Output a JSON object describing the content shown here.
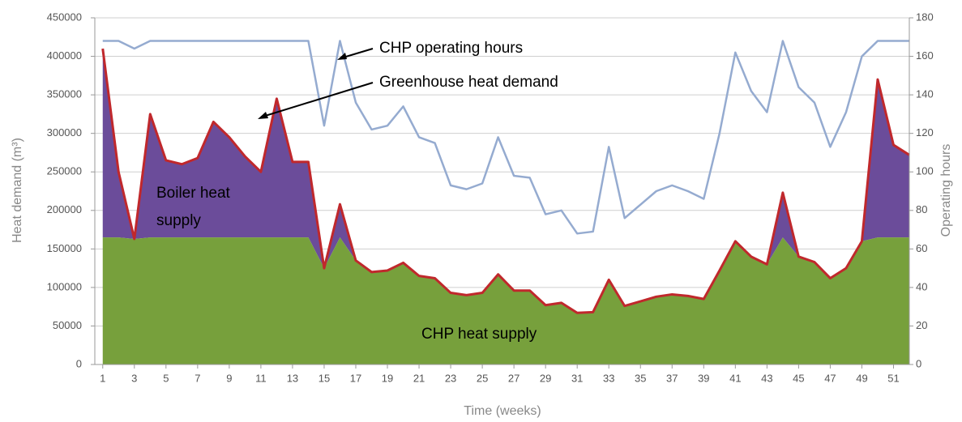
{
  "chart_data": {
    "type": "area",
    "x_label": "Time (weeks)",
    "y_label": "Heat demand (m³)",
    "y2_label": "Operating hours",
    "x": [
      1,
      2,
      3,
      4,
      5,
      6,
      7,
      8,
      9,
      10,
      11,
      12,
      13,
      14,
      15,
      16,
      17,
      18,
      19,
      20,
      21,
      22,
      23,
      24,
      25,
      26,
      27,
      28,
      29,
      30,
      31,
      32,
      33,
      34,
      35,
      36,
      37,
      38,
      39,
      40,
      41,
      42,
      43,
      44,
      45,
      46,
      47,
      48,
      49,
      50,
      51,
      52
    ],
    "xlim": [
      0.5,
      52
    ],
    "xticks": [
      1,
      3,
      5,
      7,
      9,
      11,
      13,
      15,
      17,
      19,
      21,
      23,
      25,
      27,
      29,
      31,
      33,
      35,
      37,
      39,
      41,
      43,
      45,
      47,
      49,
      51
    ],
    "ylim": [
      0,
      450000
    ],
    "yticks": [
      0,
      50000,
      100000,
      150000,
      200000,
      250000,
      300000,
      350000,
      400000,
      450000
    ],
    "y2lim": [
      0,
      180
    ],
    "y2ticks": [
      0,
      20,
      40,
      60,
      80,
      100,
      120,
      140,
      160,
      180
    ],
    "grid": true,
    "series": [
      {
        "name": "CHP heat supply",
        "type": "area",
        "color": "#77a03c",
        "values": [
          165000,
          165000,
          163000,
          165000,
          165000,
          165000,
          165000,
          165000,
          165000,
          165000,
          165000,
          165000,
          165000,
          165000,
          125000,
          165000,
          135000,
          120000,
          122000,
          132000,
          115000,
          112000,
          93000,
          90000,
          93000,
          117000,
          96000,
          96000,
          77000,
          80000,
          67000,
          68000,
          110000,
          76000,
          82000,
          88000,
          91000,
          89000,
          85000,
          122000,
          160000,
          140000,
          130000,
          165000,
          140000,
          133000,
          112000,
          125000,
          160000,
          165000,
          165000,
          165000
        ]
      },
      {
        "name": "Greenhouse heat demand",
        "type": "line",
        "color": "#c0282c",
        "fill": "#6b4c9a",
        "values": [
          410000,
          250000,
          163000,
          325000,
          265000,
          260000,
          268000,
          315000,
          295000,
          270000,
          250000,
          345000,
          263000,
          263000,
          125000,
          208000,
          135000,
          120000,
          122000,
          132000,
          115000,
          112000,
          93000,
          90000,
          93000,
          117000,
          96000,
          96000,
          77000,
          80000,
          67000,
          68000,
          110000,
          76000,
          82000,
          88000,
          91000,
          89000,
          85000,
          122000,
          160000,
          140000,
          130000,
          223000,
          140000,
          133000,
          112000,
          125000,
          160000,
          370000,
          285000,
          272000
        ]
      },
      {
        "name": "CHP operating hours",
        "type": "line",
        "axis": "y2",
        "color": "#95abd0",
        "values": [
          168,
          168,
          164,
          168,
          168,
          168,
          168,
          168,
          168,
          168,
          168,
          168,
          168,
          168,
          124,
          168,
          136,
          122,
          124,
          134,
          118,
          115,
          93,
          91,
          94,
          118,
          98,
          97,
          78,
          80,
          68,
          69,
          113,
          76,
          83,
          90,
          93,
          90,
          86,
          120,
          162,
          142,
          131,
          168,
          144,
          136,
          113,
          131,
          160,
          168,
          168,
          168
        ]
      }
    ],
    "annotations": [
      "Boiler heat supply"
    ]
  }
}
